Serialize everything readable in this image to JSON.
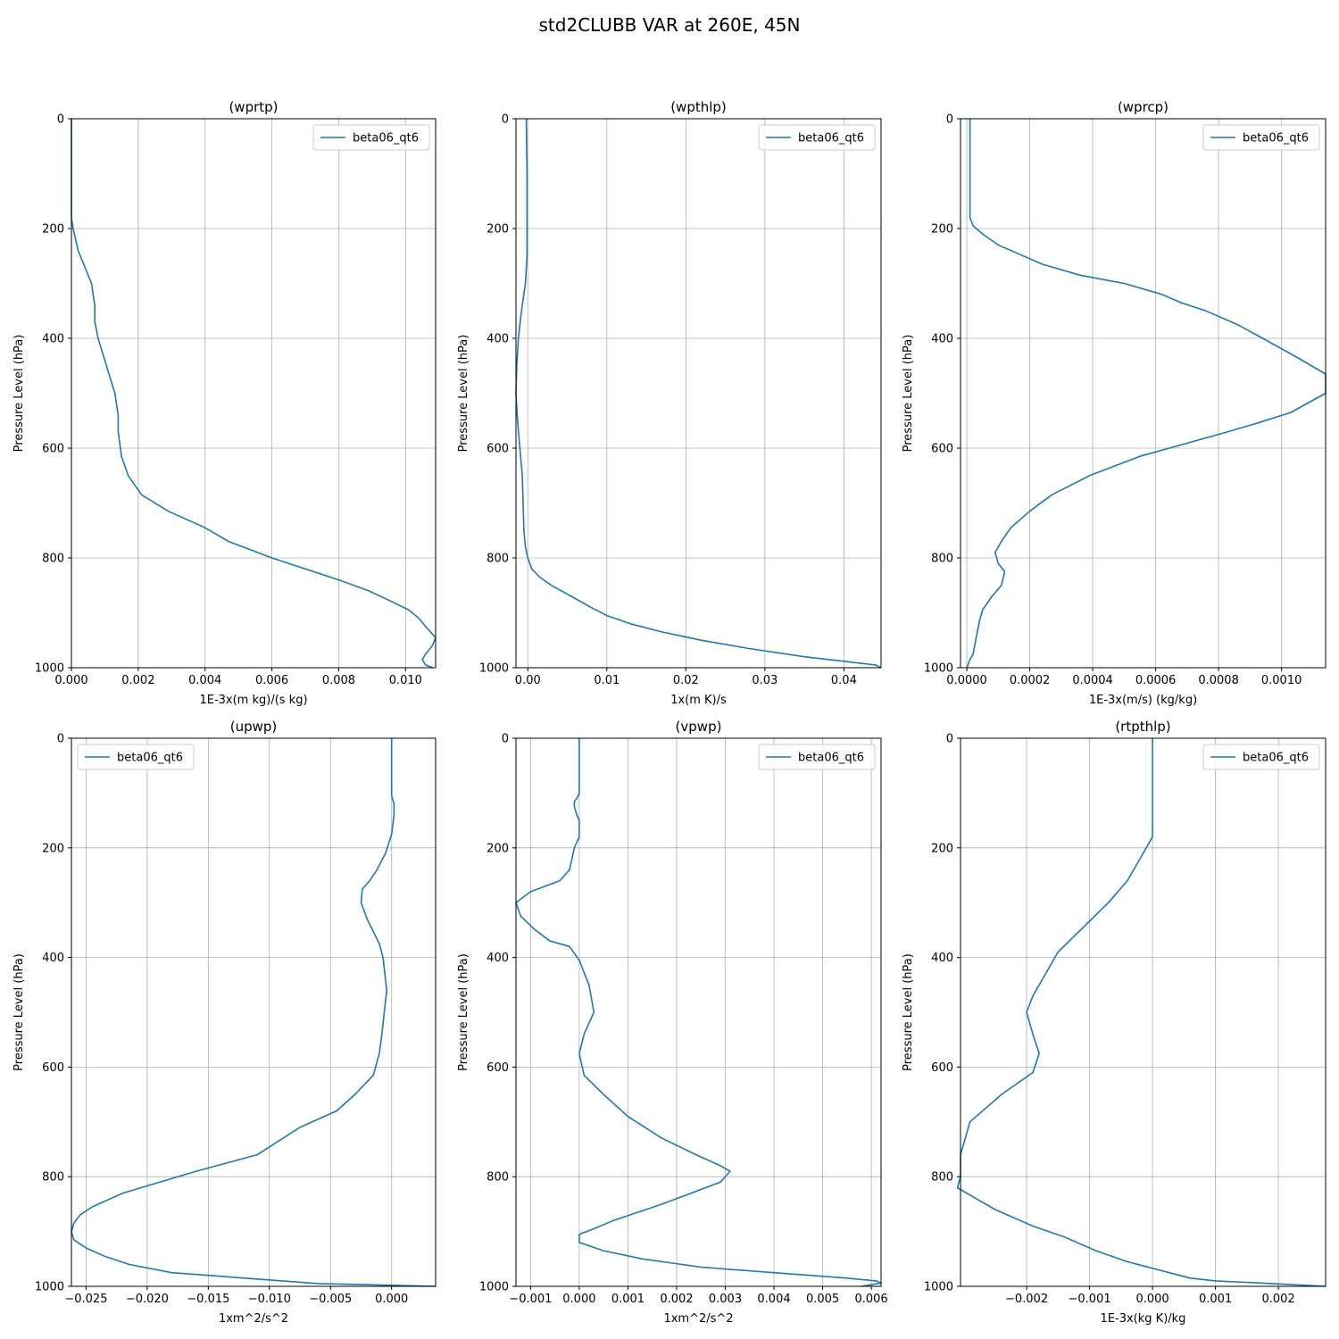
{
  "figure": {
    "title": "std2CLUBB VAR at 260E, 45N"
  },
  "chart_data": [
    {
      "type": "line",
      "title": "(wprtp)",
      "xlabel": "1E-3x(m kg)/(s kg)",
      "ylabel": "Pressure Level (hPa)",
      "xlim": [
        0,
        0.0109
      ],
      "ylim": [
        1000,
        0
      ],
      "xticks": [
        0,
        0.002,
        0.004,
        0.006,
        0.008,
        0.01
      ],
      "xtick_labels": [
        "0.000",
        "0.002",
        "0.004",
        "0.006",
        "0.008",
        "0.010"
      ],
      "yticks": [
        0,
        200,
        400,
        600,
        800,
        1000
      ],
      "ytick_labels": [
        "0",
        "200",
        "400",
        "600",
        "800",
        "1000"
      ],
      "grid": true,
      "legend_position": "top-right",
      "series": [
        {
          "name": "beta06_qt6",
          "color": "#1f77b4",
          "x": [
            0.0,
            0.0,
            0.0,
            0.0,
            5e-05,
            0.0002,
            0.0004,
            0.0006,
            0.0007,
            0.0007,
            0.0008,
            0.001,
            0.0013,
            0.0014,
            0.0014,
            0.0015,
            0.0017,
            0.0021,
            0.0029,
            0.004,
            0.0047,
            0.006,
            0.008,
            0.0089,
            0.0096,
            0.0101,
            0.0104,
            0.0106,
            0.0109,
            0.0108,
            0.0106,
            0.0105,
            0.0106,
            0.0108
          ],
          "y": [
            0,
            100,
            150,
            180,
            200,
            240,
            270,
            300,
            340,
            370,
            400,
            440,
            500,
            540,
            570,
            615,
            650,
            685,
            715,
            745,
            770,
            800,
            840,
            860,
            880,
            895,
            910,
            925,
            945,
            960,
            975,
            985,
            995,
            1000
          ]
        }
      ]
    },
    {
      "type": "line",
      "title": "(wpthlp)",
      "xlabel": "1x(m K)/s",
      "ylabel": "Pressure Level (hPa)",
      "xlim": [
        -0.0015,
        0.0447
      ],
      "ylim": [
        1000,
        0
      ],
      "xticks": [
        0,
        0.01,
        0.02,
        0.03,
        0.04
      ],
      "xtick_labels": [
        "0.00",
        "0.01",
        "0.02",
        "0.03",
        "0.04"
      ],
      "yticks": [
        0,
        200,
        400,
        600,
        800,
        1000
      ],
      "ytick_labels": [
        "0",
        "200",
        "400",
        "600",
        "800",
        "1000"
      ],
      "grid": true,
      "legend_position": "top-right",
      "series": [
        {
          "name": "beta06_qt6",
          "color": "#1f77b4",
          "x": [
            -0.0002,
            -0.0001,
            -0.0001,
            -0.0001,
            -0.0003,
            -0.0008,
            -0.0012,
            -0.0014,
            -0.0015,
            -0.0013,
            -0.001,
            -0.0007,
            -0.0006,
            -0.0005,
            -0.0003,
            0.0,
            0.0005,
            0.0015,
            0.003,
            0.0055,
            0.008,
            0.01,
            0.013,
            0.017,
            0.022,
            0.028,
            0.035,
            0.044,
            0.0447
          ],
          "y": [
            0,
            100,
            200,
            250,
            300,
            350,
            400,
            450,
            500,
            550,
            600,
            650,
            700,
            750,
            780,
            800,
            820,
            835,
            850,
            870,
            890,
            905,
            920,
            935,
            950,
            965,
            980,
            995,
            1000
          ]
        }
      ]
    },
    {
      "type": "line",
      "title": "(wprcp)",
      "xlabel": "1E-3x(m/s) (kg/kg)",
      "ylabel": "Pressure Level (hPa)",
      "xlim": [
        -2e-05,
        0.00114
      ],
      "ylim": [
        1000,
        0
      ],
      "xticks": [
        0,
        0.0002,
        0.0004,
        0.0006,
        0.0008,
        0.001
      ],
      "xtick_labels": [
        "0.0000",
        "0.0002",
        "0.0004",
        "0.0006",
        "0.0008",
        "0.0010"
      ],
      "yticks": [
        0,
        200,
        400,
        600,
        800,
        1000
      ],
      "ytick_labels": [
        "0",
        "200",
        "400",
        "600",
        "800",
        "1000"
      ],
      "grid": true,
      "legend_position": "top-right",
      "series": [
        {
          "name": "beta06_qt6",
          "color": "#1f77b4",
          "x": [
            1e-05,
            1e-05,
            1e-05,
            2e-05,
            5e-05,
            0.0001,
            0.00016,
            0.00024,
            0.00036,
            0.0005,
            0.00062,
            0.00068,
            0.00076,
            0.00086,
            0.00094,
            0.00105,
            0.00114,
            0.00114,
            0.00103,
            0.00092,
            0.0008,
            0.00055,
            0.00039,
            0.00027,
            0.0002,
            0.00014,
            0.00011,
            9e-05,
            0.0001,
            0.00012,
            0.00011,
            8e-05,
            5e-05,
            4e-05,
            3e-05,
            2e-05,
            1e-05,
            0.0
          ],
          "y": [
            0,
            100,
            180,
            195,
            210,
            230,
            245,
            265,
            285,
            300,
            320,
            335,
            350,
            375,
            400,
            435,
            465,
            500,
            535,
            555,
            575,
            615,
            650,
            685,
            715,
            745,
            770,
            790,
            810,
            825,
            850,
            870,
            895,
            915,
            945,
            975,
            985,
            1000
          ]
        }
      ]
    },
    {
      "type": "line",
      "title": "(upwp)",
      "xlabel": "1xm^2/s^2",
      "ylabel": "Pressure Level (hPa)",
      "xlim": [
        -0.0262,
        0.0036
      ],
      "ylim": [
        1000,
        0
      ],
      "xticks": [
        -0.025,
        -0.02,
        -0.015,
        -0.01,
        -0.005,
        0
      ],
      "xtick_labels": [
        "−0.025",
        "−0.020",
        "−0.015",
        "−0.010",
        "−0.005",
        "0.000"
      ],
      "yticks": [
        0,
        200,
        400,
        600,
        800,
        1000
      ],
      "ytick_labels": [
        "0",
        "200",
        "400",
        "600",
        "800",
        "1000"
      ],
      "grid": true,
      "legend_position": "top-left",
      "series": [
        {
          "name": "beta06_qt6",
          "color": "#1f77b4",
          "x": [
            0.0,
            0.0,
            0.0,
            0.0002,
            0.0002,
            0.0,
            -0.0005,
            -0.0012,
            -0.0018,
            -0.0024,
            -0.0025,
            -0.002,
            -0.001,
            -0.0007,
            -0.0004,
            -0.0008,
            -0.001,
            -0.0015,
            -0.003,
            -0.0045,
            -0.0075,
            -0.011,
            -0.016,
            -0.022,
            -0.0245,
            -0.0255,
            -0.026,
            -0.0262,
            -0.026,
            -0.025,
            -0.0235,
            -0.0215,
            -0.018,
            -0.012,
            -0.006,
            0.0,
            0.0036
          ],
          "y": [
            0,
            100,
            105,
            120,
            140,
            175,
            210,
            240,
            260,
            275,
            300,
            330,
            375,
            400,
            460,
            540,
            575,
            615,
            650,
            680,
            710,
            760,
            790,
            830,
            855,
            870,
            885,
            900,
            915,
            930,
            945,
            960,
            975,
            985,
            995,
            998,
            1000
          ]
        }
      ]
    },
    {
      "type": "line",
      "title": "(vpwp)",
      "xlabel": "1xm^2/s^2",
      "ylabel": "Pressure Level (hPa)",
      "xlim": [
        -0.0013,
        0.0062
      ],
      "ylim": [
        1000,
        0
      ],
      "xticks": [
        -0.001,
        0,
        0.001,
        0.002,
        0.003,
        0.004,
        0.005,
        0.006
      ],
      "xtick_labels": [
        "−0.001",
        "0.000",
        "0.001",
        "0.002",
        "0.003",
        "0.004",
        "0.005",
        "0.006"
      ],
      "yticks": [
        0,
        200,
        400,
        600,
        800,
        1000
      ],
      "ytick_labels": [
        "0",
        "200",
        "400",
        "600",
        "800",
        "1000"
      ],
      "grid": true,
      "legend_position": "top-right",
      "series": [
        {
          "name": "beta06_qt6",
          "color": "#1f77b4",
          "x": [
            0.0,
            0.0,
            -5e-05,
            -0.0001,
            -0.0001,
            -5e-05,
            0.0,
            0.0,
            -0.0001,
            -0.0002,
            -0.0004,
            -0.0007,
            -0.001,
            -0.0013,
            -0.0012,
            -0.0009,
            -0.0006,
            -0.0002,
            0.0,
            0.0002,
            0.0003,
            0.0001,
            0.0,
            0.0001,
            0.0005,
            0.001,
            0.0017,
            0.0024,
            0.0029,
            0.0031,
            0.0029,
            0.0023,
            0.0017,
            0.0012,
            0.0007,
            0.0003,
            0.0,
            0.0,
            0.0005,
            0.0013,
            0.0025,
            0.004,
            0.0055,
            0.0061,
            0.0062,
            0.0058
          ],
          "y": [
            0,
            100,
            110,
            115,
            125,
            140,
            150,
            180,
            200,
            240,
            260,
            270,
            280,
            300,
            325,
            350,
            370,
            380,
            405,
            450,
            500,
            540,
            575,
            615,
            650,
            690,
            730,
            760,
            780,
            790,
            810,
            830,
            850,
            865,
            880,
            895,
            905,
            920,
            935,
            950,
            965,
            975,
            985,
            990,
            994,
            1000
          ]
        }
      ]
    },
    {
      "type": "line",
      "title": "(rtpthlp)",
      "xlabel": "1E-3x(kg K)/kg",
      "ylabel": "Pressure Level (hPa)",
      "xlim": [
        -0.00305,
        0.00275
      ],
      "ylim": [
        1000,
        0
      ],
      "xticks": [
        -0.002,
        -0.001,
        0,
        0.001,
        0.002
      ],
      "xtick_labels": [
        "−0.002",
        "−0.001",
        "0.000",
        "0.001",
        "0.002"
      ],
      "yticks": [
        0,
        200,
        400,
        600,
        800,
        1000
      ],
      "ytick_labels": [
        "0",
        "200",
        "400",
        "600",
        "800",
        "1000"
      ],
      "grid": true,
      "legend_position": "top-right",
      "series": [
        {
          "name": "beta06_qt6",
          "color": "#1f77b4",
          "x": [
            0.0,
            0.0,
            0.0,
            -0.0002,
            -0.0004,
            -0.0007,
            -0.0011,
            -0.0015,
            -0.0017,
            -0.0019,
            -0.002,
            -0.0019,
            -0.0018,
            -0.0019,
            -0.0024,
            -0.0029,
            -0.003,
            -0.00305,
            -0.00305,
            -0.0031,
            -0.0028,
            -0.0025,
            -0.0019,
            -0.0014,
            -0.0009,
            -0.0004,
            0.0001,
            0.0006,
            0.001,
            0.0019,
            0.00275
          ],
          "y": [
            0,
            100,
            180,
            220,
            260,
            300,
            345,
            390,
            430,
            470,
            500,
            540,
            575,
            610,
            650,
            700,
            740,
            760,
            800,
            820,
            840,
            860,
            890,
            910,
            935,
            955,
            970,
            985,
            990,
            995,
            1000
          ]
        }
      ]
    }
  ]
}
